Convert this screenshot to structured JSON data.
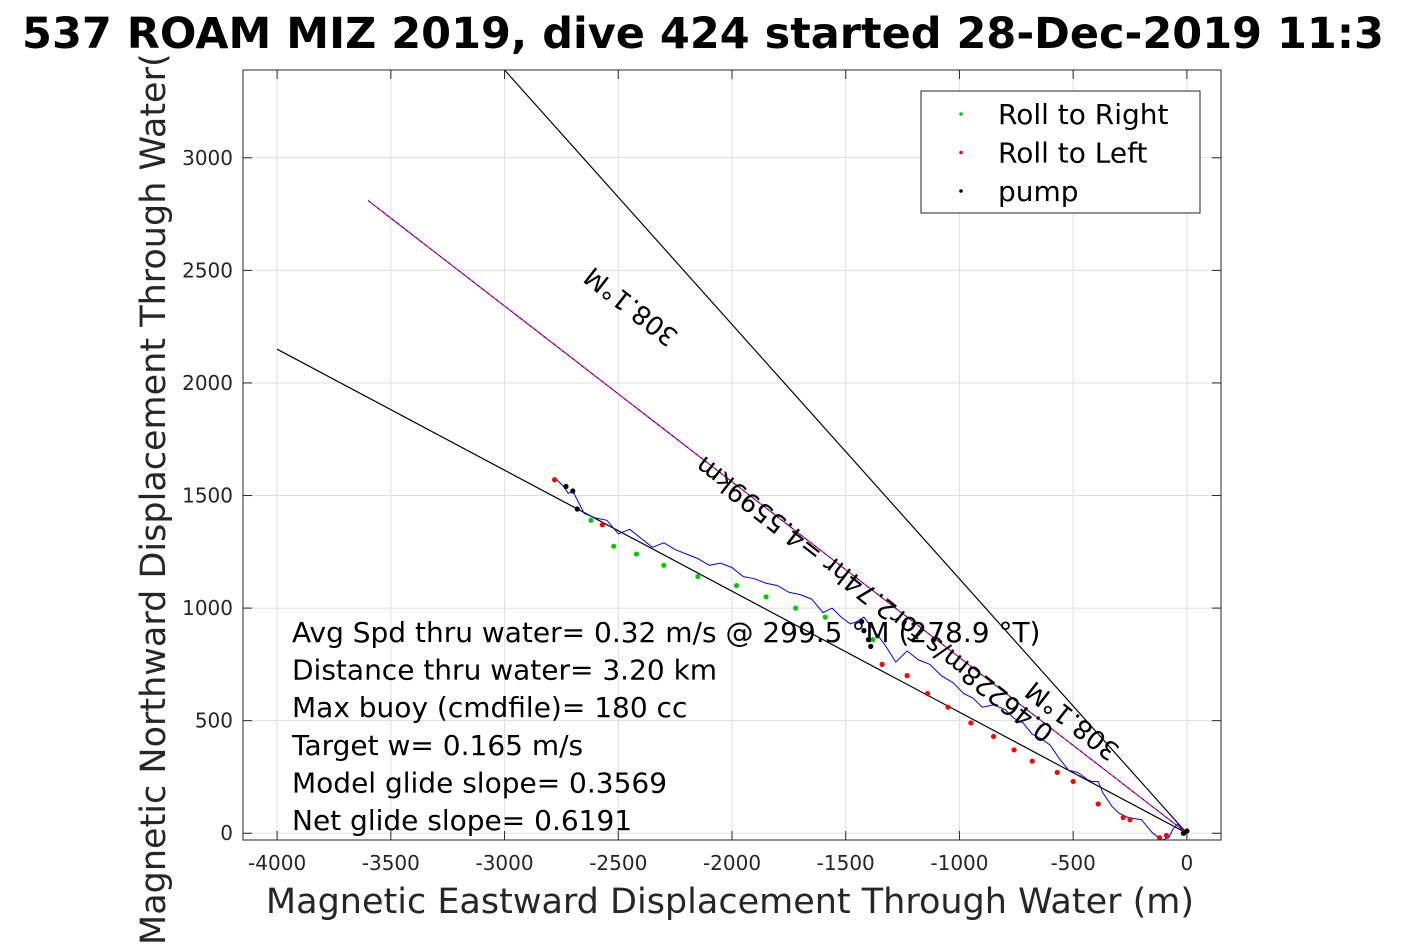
{
  "chart_data": {
    "type": "scatter",
    "title": "537 ROAM MIZ 2019, dive 424 started 28-Dec-2019 11:3",
    "xlabel": "Magnetic Eastward Displacement Through Water (m)",
    "ylabel": "Magnetic Northward Displacement Through Water(",
    "xlim": [
      -4150,
      150
    ],
    "ylim": [
      -30,
      3390
    ],
    "xticks": [
      -4000,
      -3500,
      -3000,
      -2500,
      -2000,
      -1500,
      -1000,
      -500,
      0
    ],
    "yticks": [
      0,
      500,
      1000,
      1500,
      2000,
      2500,
      3000
    ],
    "grid": true,
    "legend": {
      "placement": "top-right",
      "entries": [
        {
          "label": "Roll to Right",
          "color": "#00cc00"
        },
        {
          "label": "Roll to Left",
          "color": "#ff0000"
        },
        {
          "label": "pump",
          "color": "#000000"
        }
      ]
    },
    "colors": {
      "track": "#0000ff",
      "reference_lines": "#000000",
      "heading_line": "#cc00cc",
      "roll_right": "#00cc00",
      "roll_left": "#ff0000",
      "pump": "#000000"
    },
    "reference_lines": [
      {
        "x": [
          0,
          -3000
        ],
        "y": [
          0,
          3390
        ]
      },
      {
        "x": [
          0,
          -4000
        ],
        "y": [
          0,
          2150
        ]
      }
    ],
    "heading_line": {
      "x": [
        0,
        -3600
      ],
      "y": [
        0,
        2810
      ]
    },
    "track": {
      "x": [
        0,
        -40,
        -60,
        -80,
        -110,
        -150,
        -200,
        -260,
        -300,
        -330,
        -370,
        -390,
        -420,
        -440,
        -480,
        -520,
        -560,
        -600,
        -640,
        -680,
        -720,
        -760,
        -800,
        -850,
        -900,
        -940,
        -980,
        -1030,
        -1080,
        -1130,
        -1180,
        -1230,
        -1280,
        -1330,
        -1360,
        -1390,
        -1420,
        -1450,
        -1480,
        -1520,
        -1560,
        -1600,
        -1650,
        -1700,
        -1750,
        -1800,
        -1850,
        -1900,
        -1950,
        -2000,
        -2050,
        -2100,
        -2150,
        -2200,
        -2250,
        -2300,
        -2350,
        -2400,
        -2450,
        -2500,
        -2550,
        -2600,
        -2650,
        -2680,
        -2700,
        -2720,
        -2740,
        -2780
      ],
      "y": [
        0,
        40,
        20,
        -20,
        -30,
        0,
        60,
        70,
        90,
        120,
        180,
        230,
        230,
        240,
        270,
        280,
        330,
        390,
        420,
        440,
        490,
        510,
        550,
        570,
        560,
        600,
        620,
        670,
        700,
        750,
        770,
        810,
        760,
        840,
        880,
        920,
        960,
        940,
        930,
        960,
        1000,
        980,
        1040,
        1060,
        1070,
        1100,
        1110,
        1130,
        1140,
        1180,
        1200,
        1190,
        1220,
        1240,
        1260,
        1290,
        1270,
        1310,
        1350,
        1330,
        1390,
        1400,
        1420,
        1480,
        1520,
        1510,
        1540,
        1580
      ]
    },
    "roll_right": {
      "x": [
        -2620,
        -2520,
        -2420,
        -2300,
        -2150,
        -1980,
        -1850,
        -1720,
        -1590,
        -1380
      ],
      "y": [
        1390,
        1275,
        1240,
        1190,
        1140,
        1100,
        1050,
        1000,
        960,
        860
      ]
    },
    "roll_left": {
      "x": [
        -2780,
        -2570,
        -1340,
        -1230,
        -1140,
        -1050,
        -950,
        -850,
        -760,
        -680,
        -570,
        -500,
        -390,
        -280,
        -250,
        -120,
        -90,
        -10
      ],
      "y": [
        1570,
        1370,
        750,
        700,
        620,
        560,
        490,
        430,
        370,
        320,
        270,
        230,
        130,
        70,
        60,
        -20,
        -10,
        5
      ]
    },
    "pump": {
      "x": [
        -2730,
        -2700,
        -2680,
        -1430,
        -1420,
        -1400,
        -1390,
        0,
        -15
      ],
      "y": [
        1540,
        1520,
        1440,
        940,
        900,
        860,
        830,
        10,
        0
      ]
    },
    "annotations": [
      {
        "text": "308.1°M",
        "x": -2420,
        "y": 2370,
        "rotate": 218
      },
      {
        "text": "0.46228m/s for2.74hr =4.5599km",
        "x": -1350,
        "y": 1070,
        "rotate": 218
      },
      {
        "text": "308.1°M",
        "x": -480,
        "y": 530,
        "rotate": 218
      }
    ],
    "stats": [
      "Avg Spd thru water=  0.32 m/s @ 299.5 °M (278.9 °T)",
      "Distance thru water=  3.20 km",
      "Max buoy (cmdfile)= 180 cc",
      "Target w= 0.165 m/s",
      "Model glide slope= 0.3569",
      "Net glide slope= 0.6191"
    ]
  }
}
